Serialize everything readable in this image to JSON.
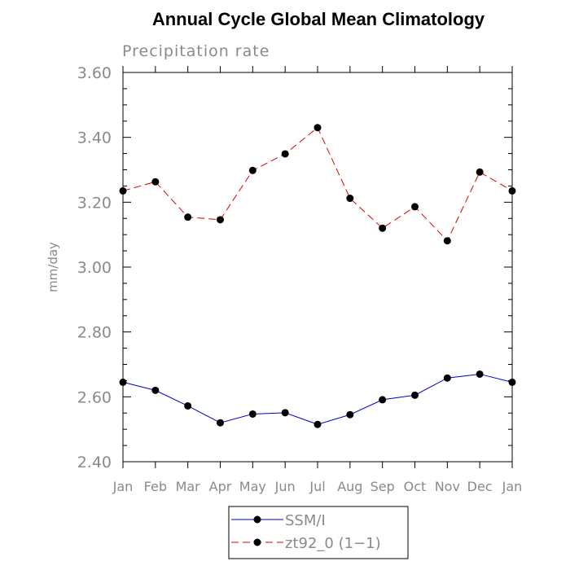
{
  "chart_data": {
    "type": "line",
    "title": "Annual Cycle Global Mean Climatology",
    "subtitle": "Precipitation rate",
    "ylabel": "mm/day",
    "xlabel": "",
    "categories": [
      "Jan",
      "Feb",
      "Mar",
      "Apr",
      "May",
      "Jun",
      "Jul",
      "Aug",
      "Sep",
      "Oct",
      "Nov",
      "Dec",
      "Jan"
    ],
    "ylim": [
      2.4,
      3.6
    ],
    "yticks": [
      "2.40",
      "2.60",
      "2.80",
      "3.00",
      "3.20",
      "3.40",
      "3.60"
    ],
    "ytick_values": [
      2.4,
      2.6,
      2.8,
      3.0,
      3.2,
      3.4,
      3.6
    ],
    "grid": false,
    "legend_position": "bottom-center",
    "series": [
      {
        "name": "SSM/I",
        "color": "#0000cc",
        "line_style": "solid",
        "marker": "filled-circle",
        "values": [
          2.645,
          2.62,
          2.572,
          2.52,
          2.547,
          2.551,
          2.515,
          2.545,
          2.591,
          2.605,
          2.658,
          2.67,
          2.645
        ]
      },
      {
        "name": "zt92_0 (1−1)",
        "color": "#dd0000",
        "line_style": "dashed",
        "marker": "filled-circle",
        "values": [
          3.235,
          3.263,
          3.154,
          3.146,
          3.298,
          3.349,
          3.43,
          3.212,
          3.12,
          3.186,
          3.081,
          3.293,
          3.235
        ]
      }
    ]
  }
}
